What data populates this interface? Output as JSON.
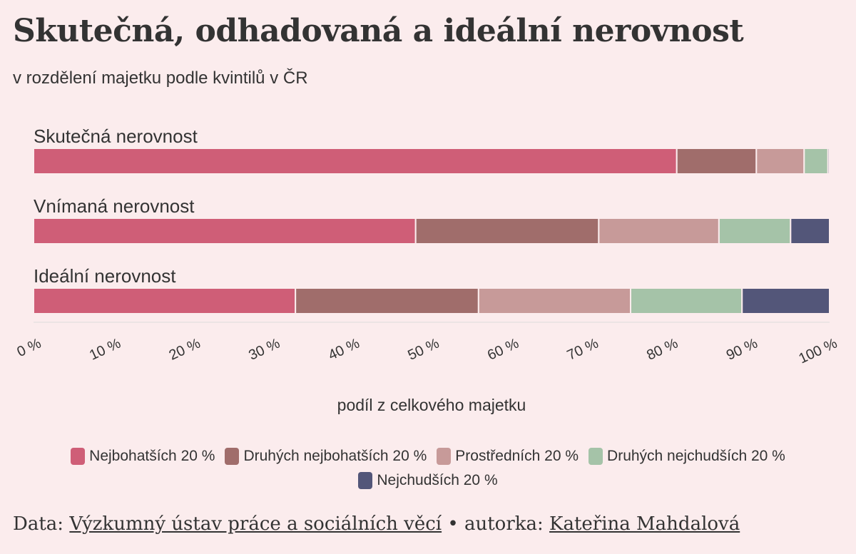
{
  "header": {
    "title": "Skutečná, odhadovaná a ideální nerovnost",
    "subtitle": "v rozdělení majetku podle kvintilů v ČR"
  },
  "chart_data": {
    "type": "bar",
    "orientation": "horizontal",
    "stacked": true,
    "title": "Skutečná, odhadovaná a ideální nerovnost",
    "subtitle": "v rozdělení majetku podle kvintilů v ČR",
    "xlabel": "podíl z celkového majetku",
    "ylabel": "",
    "xlim": [
      0,
      100
    ],
    "xticks": [
      0,
      10,
      20,
      30,
      40,
      50,
      60,
      70,
      80,
      90,
      100
    ],
    "tick_labels": [
      "0 %",
      "10 %",
      "20 %",
      "30 %",
      "40 %",
      "50 %",
      "60 %",
      "70 %",
      "80 %",
      "90 %",
      "100 %"
    ],
    "categories": [
      "Skutečná nerovnost",
      "Vnímaná nerovnost",
      "Ideální nerovnost"
    ],
    "series": [
      {
        "name": "Nejbohatších 20 %",
        "color": "#cf5e77",
        "values": [
          80.8,
          48.0,
          32.9
        ]
      },
      {
        "name": "Druhých nejbohatších 20 %",
        "color": "#a06d6b",
        "values": [
          10.0,
          23.0,
          23.0
        ]
      },
      {
        "name": "Prostředních 20 %",
        "color": "#c79a99",
        "values": [
          6.0,
          15.1,
          19.1
        ]
      },
      {
        "name": "Druhých nejchudších 20 %",
        "color": "#a5c3a8",
        "values": [
          3.0,
          9.0,
          14.0
        ]
      },
      {
        "name": "Nejchudších 20 %",
        "color": "#535679",
        "values": [
          0.2,
          4.9,
          11.0
        ]
      }
    ],
    "grid": false,
    "legend_position": "bottom"
  },
  "footer": {
    "data_prefix": "Data:",
    "data_source": "Výzkumný ústav práce a sociálních věcí",
    "separator": "•",
    "author_prefix": "autorka:",
    "author": "Kateřina Mahdalová"
  }
}
